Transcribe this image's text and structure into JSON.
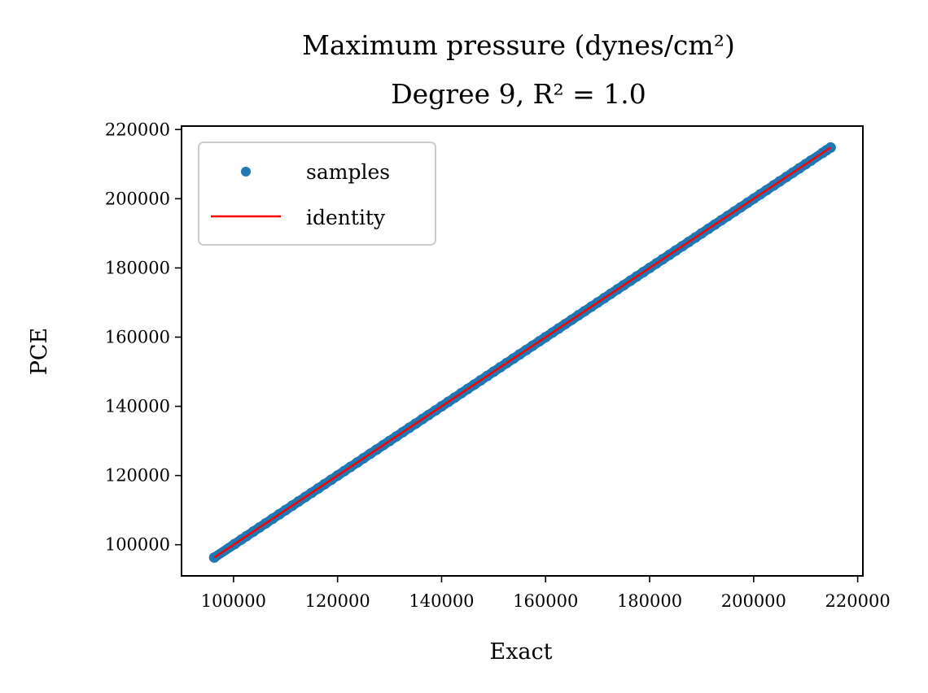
{
  "chart_data": {
    "type": "scatter",
    "title_line1": "Maximum pressure (dynes/cm²)",
    "title_line2": "Degree 9, R² = 1.0",
    "xlabel": "Exact",
    "ylabel": "PCE",
    "xlim": [
      90000,
      221000
    ],
    "ylim": [
      91000,
      221000
    ],
    "xticks": [
      100000,
      120000,
      140000,
      160000,
      180000,
      200000,
      220000
    ],
    "yticks": [
      100000,
      120000,
      140000,
      160000,
      180000,
      200000,
      220000
    ],
    "xtick_labels": [
      "100000",
      "120000",
      "140000",
      "160000",
      "180000",
      "200000",
      "220000"
    ],
    "ytick_labels": [
      "100000",
      "120000",
      "140000",
      "160000",
      "180000",
      "200000",
      "220000"
    ],
    "legend": {
      "position": "upper left",
      "entries": [
        "samples",
        "identity"
      ]
    },
    "grid": false,
    "series": [
      {
        "name": "samples",
        "kind": "scatter",
        "color": "#1f77b4",
        "range": [
          96300,
          214800
        ],
        "x": [
          96300,
          100200,
          101500,
          102500,
          103800,
          105000,
          106200,
          107500,
          108800,
          110000,
          111300,
          112500,
          113800,
          115000,
          116300,
          117500,
          118800,
          120000,
          121300,
          122500,
          123800,
          125000,
          126300,
          127500,
          128800,
          130000,
          131300,
          132500,
          133800,
          135000,
          136300,
          137500,
          138800,
          140000,
          141300,
          142500,
          143800,
          145000,
          146300,
          147500,
          148800,
          150000,
          151300,
          152500,
          153800,
          155000,
          156300,
          157500,
          158800,
          160000,
          161300,
          162500,
          163800,
          165000,
          166300,
          167500,
          168800,
          170000,
          171300,
          172500,
          173800,
          175000,
          176300,
          177500,
          178800,
          180000,
          181300,
          182500,
          183800,
          185000,
          186300,
          187500,
          188800,
          190000,
          191300,
          192500,
          193800,
          195000,
          196300,
          197500,
          198800,
          200000,
          201300,
          202500,
          203800,
          205000,
          206300,
          207500,
          208800,
          210000,
          211000,
          213300,
          214000,
          214800
        ],
        "y": [
          96300,
          100200,
          101500,
          102500,
          103800,
          105000,
          106200,
          107500,
          108800,
          110000,
          111300,
          112500,
          113800,
          115000,
          116300,
          117500,
          118800,
          120000,
          121300,
          122500,
          123800,
          125000,
          126300,
          127500,
          128800,
          130000,
          131300,
          132500,
          133800,
          135000,
          136300,
          137500,
          138800,
          140000,
          141300,
          142500,
          143800,
          145000,
          146300,
          147500,
          148800,
          150000,
          151300,
          152500,
          153800,
          155000,
          156300,
          157500,
          158800,
          160000,
          161300,
          162500,
          163800,
          165000,
          166300,
          167500,
          168800,
          170000,
          171300,
          172500,
          173800,
          175000,
          176300,
          177500,
          178800,
          180000,
          181300,
          182500,
          183800,
          185000,
          186300,
          187500,
          188800,
          190000,
          191300,
          192500,
          193800,
          195000,
          196300,
          197500,
          198800,
          200000,
          201300,
          202500,
          203800,
          205000,
          206300,
          207500,
          208800,
          210000,
          211000,
          213300,
          214000,
          214800
        ]
      },
      {
        "name": "identity",
        "kind": "line",
        "color": "#ff0000",
        "x": [
          96300,
          214800
        ],
        "y": [
          96300,
          214800
        ]
      }
    ]
  }
}
